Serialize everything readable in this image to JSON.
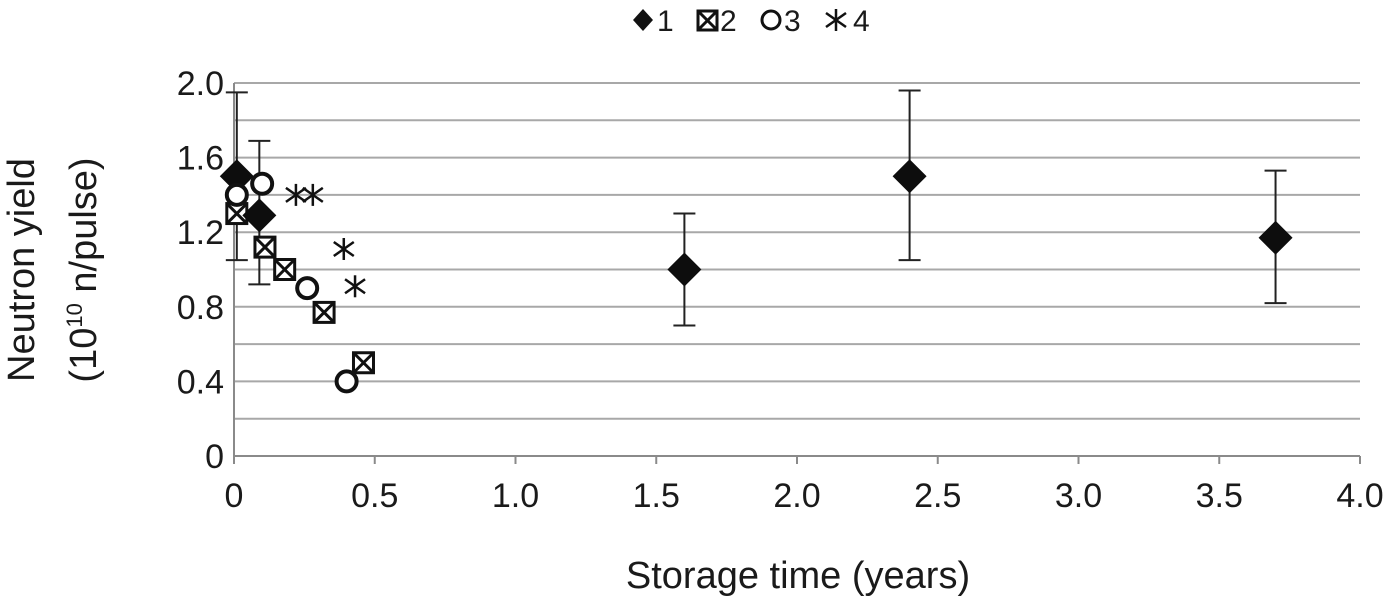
{
  "chart_data": {
    "type": "scatter",
    "xlabel": "Storage time (years)",
    "ylabel_line1": "Neutron yield",
    "ylabel_line2_pre": "(10",
    "ylabel_line2_sup": "10",
    "ylabel_line2_post": " n/pulse)",
    "xlim": [
      0,
      4.0
    ],
    "ylim": [
      0,
      2.0
    ],
    "x_ticks": [
      0,
      0.5,
      1.0,
      1.5,
      2.0,
      2.5,
      3.0,
      3.5,
      4.0
    ],
    "x_tick_labels": [
      "0",
      "0.5",
      "1.0",
      "1.5",
      "2.0",
      "2.5",
      "3.0",
      "3.5",
      "4.0"
    ],
    "y_ticks": [
      0,
      0.4,
      0.8,
      1.2,
      1.6,
      2.0
    ],
    "y_tick_labels": [
      "0",
      "0.4",
      "0.8",
      "1.2",
      "1.6",
      "2.0"
    ],
    "y_gridlines": [
      0.2,
      0.4,
      0.6,
      0.8,
      1.0,
      1.2,
      1.4,
      1.6,
      1.8,
      2.0
    ],
    "grid": "horizontal",
    "legend_position": "top-center",
    "series": [
      {
        "name": "1",
        "marker": "diamond",
        "points": [
          {
            "x": 0.01,
            "y": 1.5,
            "err_low": 1.05,
            "err_high": 1.95
          },
          {
            "x": 0.09,
            "y": 1.29,
            "err_low": 0.92,
            "err_high": 1.69
          },
          {
            "x": 1.6,
            "y": 1.0,
            "err_low": 0.7,
            "err_high": 1.3
          },
          {
            "x": 2.4,
            "y": 1.5,
            "err_low": 1.05,
            "err_high": 1.96
          },
          {
            "x": 3.7,
            "y": 1.17,
            "err_low": 0.82,
            "err_high": 1.53
          }
        ]
      },
      {
        "name": "2",
        "marker": "crossed-square",
        "points": [
          {
            "x": 0.01,
            "y": 1.3
          },
          {
            "x": 0.11,
            "y": 1.12
          },
          {
            "x": 0.18,
            "y": 1.0
          },
          {
            "x": 0.32,
            "y": 0.77
          },
          {
            "x": 0.46,
            "y": 0.5
          }
        ]
      },
      {
        "name": "3",
        "marker": "open-circle",
        "points": [
          {
            "x": 0.01,
            "y": 1.4
          },
          {
            "x": 0.1,
            "y": 1.46
          },
          {
            "x": 0.26,
            "y": 0.9
          },
          {
            "x": 0.4,
            "y": 0.4
          }
        ]
      },
      {
        "name": "4",
        "marker": "asterisk",
        "points": [
          {
            "x": 0.22,
            "y": 1.4
          },
          {
            "x": 0.28,
            "y": 1.4
          },
          {
            "x": 0.39,
            "y": 1.11
          },
          {
            "x": 0.43,
            "y": 0.91
          }
        ]
      }
    ]
  }
}
